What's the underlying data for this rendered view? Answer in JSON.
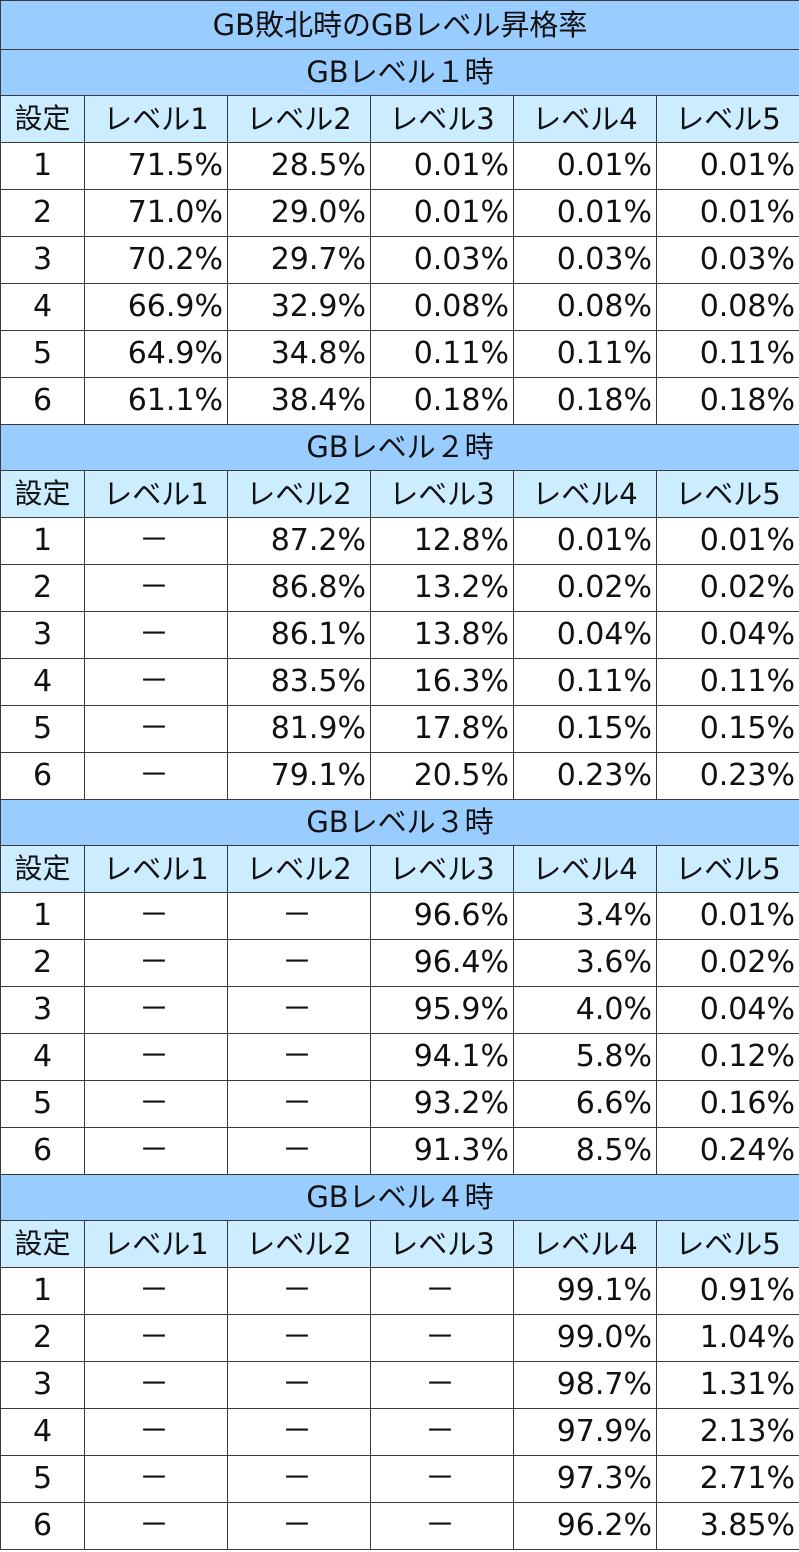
{
  "title": "GB敗北時のGBレベル昇格率",
  "columns": [
    "設定",
    "レベル1",
    "レベル2",
    "レベル3",
    "レベル4",
    "レベル5"
  ],
  "sections": [
    {
      "heading": "GBレベル１時",
      "rows": [
        [
          "1",
          "71.5%",
          "28.5%",
          "0.01%",
          "0.01%",
          "0.01%"
        ],
        [
          "2",
          "71.0%",
          "29.0%",
          "0.01%",
          "0.01%",
          "0.01%"
        ],
        [
          "3",
          "70.2%",
          "29.7%",
          "0.03%",
          "0.03%",
          "0.03%"
        ],
        [
          "4",
          "66.9%",
          "32.9%",
          "0.08%",
          "0.08%",
          "0.08%"
        ],
        [
          "5",
          "64.9%",
          "34.8%",
          "0.11%",
          "0.11%",
          "0.11%"
        ],
        [
          "6",
          "61.1%",
          "38.4%",
          "0.18%",
          "0.18%",
          "0.18%"
        ]
      ]
    },
    {
      "heading": "GBレベル２時",
      "rows": [
        [
          "1",
          "－",
          "87.2%",
          "12.8%",
          "0.01%",
          "0.01%"
        ],
        [
          "2",
          "－",
          "86.8%",
          "13.2%",
          "0.02%",
          "0.02%"
        ],
        [
          "3",
          "－",
          "86.1%",
          "13.8%",
          "0.04%",
          "0.04%"
        ],
        [
          "4",
          "－",
          "83.5%",
          "16.3%",
          "0.11%",
          "0.11%"
        ],
        [
          "5",
          "－",
          "81.9%",
          "17.8%",
          "0.15%",
          "0.15%"
        ],
        [
          "6",
          "－",
          "79.1%",
          "20.5%",
          "0.23%",
          "0.23%"
        ]
      ]
    },
    {
      "heading": "GBレベル３時",
      "rows": [
        [
          "1",
          "－",
          "－",
          "96.6%",
          "3.4%",
          "0.01%"
        ],
        [
          "2",
          "－",
          "－",
          "96.4%",
          "3.6%",
          "0.02%"
        ],
        [
          "3",
          "－",
          "－",
          "95.9%",
          "4.0%",
          "0.04%"
        ],
        [
          "4",
          "－",
          "－",
          "94.1%",
          "5.8%",
          "0.12%"
        ],
        [
          "5",
          "－",
          "－",
          "93.2%",
          "6.6%",
          "0.16%"
        ],
        [
          "6",
          "－",
          "－",
          "91.3%",
          "8.5%",
          "0.24%"
        ]
      ]
    },
    {
      "heading": "GBレベル４時",
      "rows": [
        [
          "1",
          "－",
          "－",
          "－",
          "99.1%",
          "0.91%"
        ],
        [
          "2",
          "－",
          "－",
          "－",
          "99.0%",
          "1.04%"
        ],
        [
          "3",
          "－",
          "－",
          "－",
          "98.7%",
          "1.31%"
        ],
        [
          "4",
          "－",
          "－",
          "－",
          "97.9%",
          "2.13%"
        ],
        [
          "5",
          "－",
          "－",
          "－",
          "97.3%",
          "2.71%"
        ],
        [
          "6",
          "－",
          "－",
          "－",
          "96.2%",
          "3.85%"
        ]
      ]
    }
  ],
  "colors": {
    "title_background": "#99ccff",
    "header_background": "#ccecff",
    "border": "#3a3a3a"
  }
}
